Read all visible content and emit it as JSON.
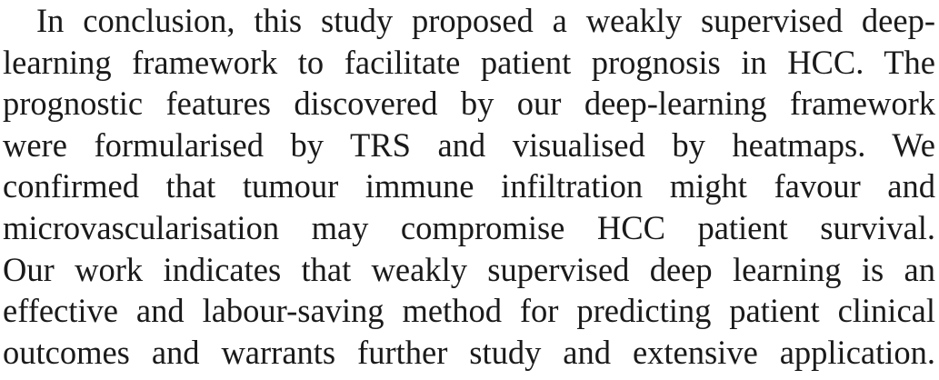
{
  "paragraph": {
    "lines": [
      "In conclusion, this study proposed a weakly supervised deep-",
      "learning framework to facilitate patient prognosis in HCC. The",
      "prognostic features discovered by our deep-learning framework",
      "were formularised by TRS and visualised by heatmaps. We",
      "confirmed that tumour immune infiltration might favour and",
      "microvascularisation may compromise HCC patient survival.",
      "Our work indicates that weakly supervised deep learning is an",
      "effective and labour-saving method for predicting patient clinical",
      "outcomes and warrants further study and extensive application."
    ]
  }
}
